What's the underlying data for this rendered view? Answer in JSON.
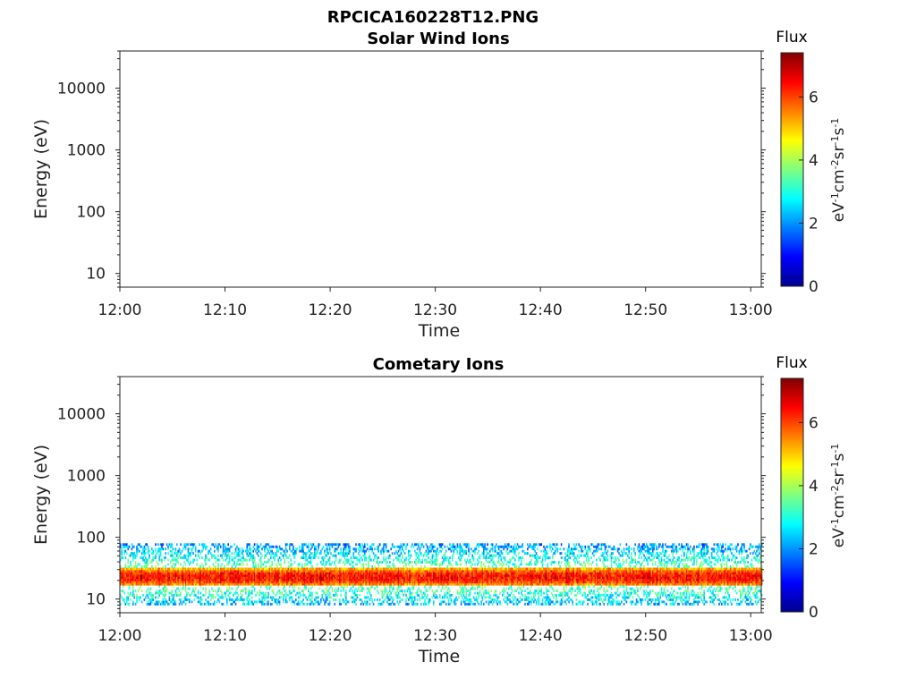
{
  "figure_title": "RPCICA160228T12.PNG",
  "chart_data": [
    {
      "type": "heatmap",
      "title": "Solar Wind Ions",
      "xlabel": "Time",
      "ylabel": "Energy (eV)",
      "x_ticks": [
        "12:00",
        "12:10",
        "12:20",
        "12:30",
        "12:40",
        "12:50",
        "13:00"
      ],
      "x_range_minutes": [
        0,
        61
      ],
      "y_scale": "log",
      "y_ticks": [
        10,
        100,
        1000,
        10000
      ],
      "y_tick_labels": [
        "10",
        "100",
        "1000",
        "10000"
      ],
      "y_range_eV": [
        6,
        40000
      ],
      "colorbar": {
        "label": "Flux",
        "units": "eV-1cm-2sr-1s-1",
        "ticks": [
          "0",
          "2",
          "4",
          "6"
        ],
        "range": [
          0,
          7.4
        ],
        "colormap": "jet"
      },
      "signal": null
    },
    {
      "type": "heatmap",
      "title": "Cometary Ions",
      "xlabel": "Time",
      "ylabel": "Energy (eV)",
      "x_ticks": [
        "12:00",
        "12:10",
        "12:20",
        "12:30",
        "12:40",
        "12:50",
        "13:00"
      ],
      "x_range_minutes": [
        0,
        61
      ],
      "y_scale": "log",
      "y_ticks": [
        10,
        100,
        1000,
        10000
      ],
      "y_tick_labels": [
        "10",
        "100",
        "1000",
        "10000"
      ],
      "y_range_eV": [
        6,
        40000
      ],
      "colorbar": {
        "label": "Flux",
        "units": "eV-1cm-2sr-1s-1",
        "ticks": [
          "0",
          "2",
          "4",
          "6"
        ],
        "range": [
          0,
          7.4
        ],
        "colormap": "jet"
      },
      "signal": {
        "time_range_minutes": [
          0,
          61
        ],
        "core_band_eV": [
          16,
          32
        ],
        "core_peak_eV": 22,
        "core_flux": 6.4,
        "halo_band_eV": [
          8,
          80
        ],
        "halo_flux": 3.5
      }
    }
  ]
}
